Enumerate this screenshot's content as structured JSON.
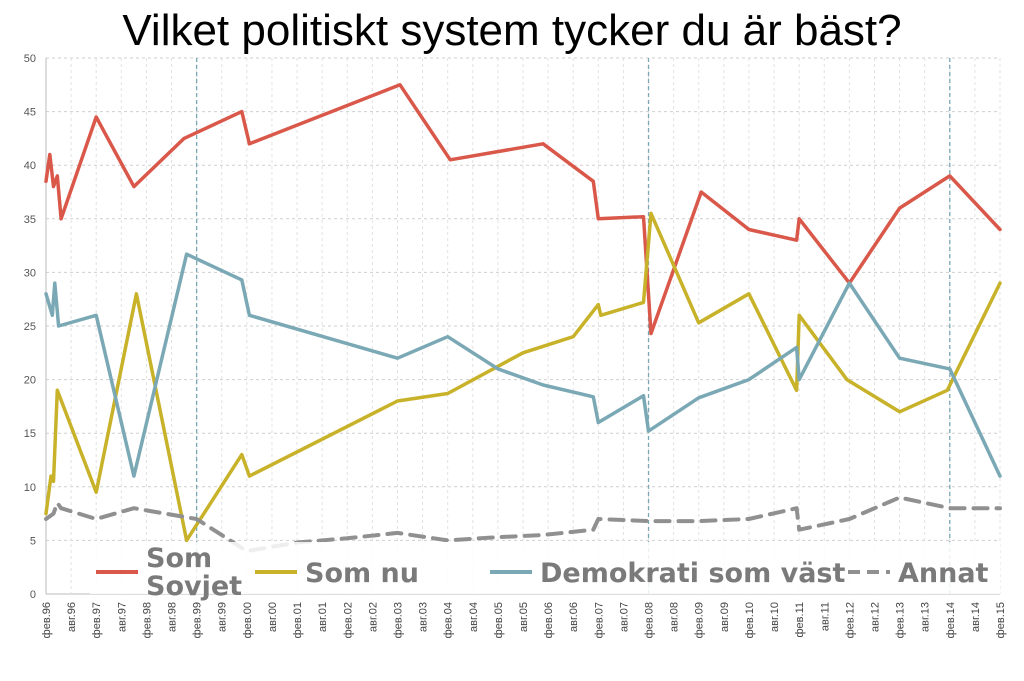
{
  "chart_data": {
    "type": "line",
    "title": "Vilket politiskt system tycker du är bäst?",
    "ylim": [
      0,
      50
    ],
    "y_ticks": [
      "0",
      "5",
      "10",
      "15",
      "20",
      "25",
      "30",
      "35",
      "40",
      "45",
      "50"
    ],
    "grid": true,
    "x_ticks": [
      "фев.96",
      "авг.96",
      "фев.97",
      "авг.97",
      "фев.98",
      "авг.98",
      "фев.99",
      "авг.99",
      "фев.00",
      "авг.00",
      "фев.01",
      "авг.01",
      "фев.02",
      "авг.02",
      "фев.03",
      "авг.03",
      "фев.04",
      "авг.04",
      "фев.05",
      "авг.05",
      "фев.06",
      "авг.06",
      "фев.07",
      "авг.07",
      "фев.08",
      "авг.08",
      "фев.09",
      "авг.09",
      "фев.10",
      "авг.10",
      "фев.11",
      "авг.11",
      "фев.12",
      "авг.12",
      "фев.13",
      "авг.13",
      "фев.14",
      "авг.14",
      "фев.15"
    ],
    "vertical_markers": [
      "фев.99",
      "фев.08",
      "фев.14"
    ],
    "legend_position": "bottom",
    "series": [
      {
        "name": "Som Sovjet",
        "color": "#d9584a",
        "dash": "solid",
        "points": [
          [
            0,
            38.5
          ],
          [
            0.15,
            41
          ],
          [
            0.3,
            38
          ],
          [
            0.45,
            39
          ],
          [
            0.6,
            35
          ],
          [
            2.0,
            44.5
          ],
          [
            3.5,
            38
          ],
          [
            5.5,
            42.5
          ],
          [
            7.8,
            45
          ],
          [
            8.1,
            42
          ],
          [
            14.1,
            47.5
          ],
          [
            16.1,
            40.5
          ],
          [
            19.8,
            42
          ],
          [
            21.8,
            38.5
          ],
          [
            22.0,
            35
          ],
          [
            23.8,
            35.2
          ],
          [
            24.1,
            24.3
          ],
          [
            26.1,
            37.5
          ],
          [
            28.0,
            34
          ],
          [
            29.9,
            33
          ],
          [
            30.0,
            35
          ],
          [
            32.0,
            29
          ],
          [
            34.0,
            36
          ],
          [
            36.0,
            39
          ],
          [
            38.0,
            34
          ]
        ]
      },
      {
        "name": "Som nu",
        "color": "#c8b22a",
        "dash": "solid",
        "points": [
          [
            0,
            7.5
          ],
          [
            0.2,
            11
          ],
          [
            0.3,
            10.5
          ],
          [
            0.45,
            19
          ],
          [
            2.0,
            9.5
          ],
          [
            3.6,
            28
          ],
          [
            5.6,
            5
          ],
          [
            7.8,
            13
          ],
          [
            8.1,
            11
          ],
          [
            14.0,
            18
          ],
          [
            16.0,
            18.7
          ],
          [
            19.0,
            22.5
          ],
          [
            21.0,
            24
          ],
          [
            22.0,
            27
          ],
          [
            22.1,
            26
          ],
          [
            23.8,
            27.2
          ],
          [
            24.1,
            35.5
          ],
          [
            26.0,
            25.3
          ],
          [
            28.0,
            28
          ],
          [
            29.9,
            19
          ],
          [
            30.0,
            26
          ],
          [
            31.9,
            20
          ],
          [
            34.0,
            17
          ],
          [
            35.9,
            19
          ],
          [
            38.0,
            29
          ]
        ]
      },
      {
        "name": "Demokrati som väst",
        "color": "#7aa8b5",
        "dash": "solid",
        "points": [
          [
            0,
            28
          ],
          [
            0.25,
            26
          ],
          [
            0.35,
            29
          ],
          [
            0.5,
            25
          ],
          [
            2.0,
            26
          ],
          [
            3.5,
            11
          ],
          [
            5.6,
            31.7
          ],
          [
            7.8,
            29.3
          ],
          [
            8.1,
            26
          ],
          [
            14.0,
            22
          ],
          [
            16.0,
            24
          ],
          [
            18.0,
            21
          ],
          [
            19.8,
            19.5
          ],
          [
            21.8,
            18.4
          ],
          [
            22.0,
            16
          ],
          [
            23.8,
            18.5
          ],
          [
            24.0,
            15.2
          ],
          [
            26.0,
            18.3
          ],
          [
            28.0,
            20
          ],
          [
            29.9,
            23
          ],
          [
            30.0,
            20
          ],
          [
            32.0,
            29
          ],
          [
            34.0,
            22
          ],
          [
            36.0,
            21
          ],
          [
            38.0,
            11
          ]
        ]
      },
      {
        "name": "Annat",
        "color": "#909090",
        "dash": "dashed",
        "points": [
          [
            0,
            7
          ],
          [
            0.3,
            7.5
          ],
          [
            0.45,
            8.5
          ],
          [
            0.6,
            8
          ],
          [
            2.0,
            7
          ],
          [
            3.5,
            8
          ],
          [
            6.0,
            7
          ],
          [
            8.0,
            4
          ],
          [
            10.0,
            4.8
          ],
          [
            12.0,
            5.2
          ],
          [
            14.0,
            5.7
          ],
          [
            16.0,
            5
          ],
          [
            18.0,
            5.3
          ],
          [
            19.8,
            5.5
          ],
          [
            21.8,
            6
          ],
          [
            22.0,
            7
          ],
          [
            24.0,
            6.8
          ],
          [
            26.0,
            6.8
          ],
          [
            28.0,
            7
          ],
          [
            29.9,
            8
          ],
          [
            30.0,
            6
          ],
          [
            32.0,
            7
          ],
          [
            34.0,
            9
          ],
          [
            36.0,
            8
          ],
          [
            38.0,
            8
          ]
        ]
      }
    ]
  }
}
